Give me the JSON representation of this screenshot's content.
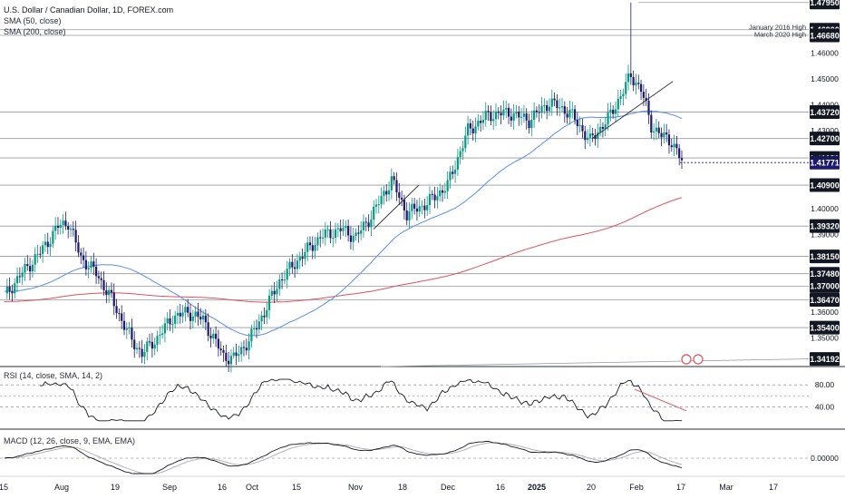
{
  "header": {
    "symbol_line": "U.S. Dollar / Canadian Dollar, 1D, FOREX.com",
    "sma50": "SMA (50, close)",
    "sma200": "SMA (200, close)"
  },
  "colors": {
    "up": "#089981",
    "down": "#1d1a6e",
    "sma50": "#5b8def",
    "sma200": "#e0525a",
    "level": "#9598a1",
    "rsi": "#131722",
    "macd_signal": "#aaaaaa",
    "badge_bg": "#131722",
    "current_bg": "#1d1a6e",
    "trend": "#e0525a"
  },
  "chart_data": [
    {
      "type": "candlestick",
      "title": "U.S. Dollar / Canadian Dollar, 1D, FOREX.com",
      "y_axis_ticks": [
        "1.46000",
        "1.45000",
        "1.44000",
        "1.43000",
        "1.42000",
        "1.40000",
        "1.39000",
        "1.36000",
        "1.35000"
      ],
      "x_axis_ticks": [
        "15",
        "Aug",
        "19",
        "Sep",
        "16",
        "Oct",
        "15",
        "Nov",
        "18",
        "Dec",
        "16",
        "2025",
        "20",
        "Feb",
        "17",
        "Mar",
        "17"
      ],
      "levels": [
        "1.47950",
        "1.46900",
        "1.46680",
        "1.43720",
        "1.42700",
        "1.41950",
        "1.40900",
        "1.39320",
        "1.38150",
        "1.37480",
        "1.37000",
        "1.36470",
        "1.35400",
        "1.34192"
      ],
      "current_price": "1.41771",
      "annotations": [
        "January 2016 High",
        "March 2020 High"
      ],
      "key_points": [
        {
          "date": "2024-07-15",
          "close": 1.366
        },
        {
          "date": "2024-08-05",
          "high": 1.3947
        },
        {
          "date": "2024-09-25",
          "low": 1.342
        },
        {
          "date": "2024-12-19",
          "close": 1.437
        },
        {
          "date": "2025-02-03",
          "high": 1.4795
        },
        {
          "date": "2025-02-14",
          "close": 1.4177
        }
      ],
      "series": [
        {
          "name": "SMA (50, close)"
        },
        {
          "name": "SMA (200, close)"
        }
      ]
    },
    {
      "type": "line",
      "title": "RSI (14, close, SMA, 14, 2)",
      "y_ticks": [
        "80.00",
        "40.00"
      ]
    },
    {
      "type": "line",
      "title": "MACD (12, 26, close, 9, EMA, EMA)",
      "y_ticks": [
        "0.00000"
      ]
    }
  ],
  "rsi_title": "RSI (14, close, SMA, 14, 2)",
  "macd_title": "MACD (12, 26, close, 9, EMA, EMA)"
}
